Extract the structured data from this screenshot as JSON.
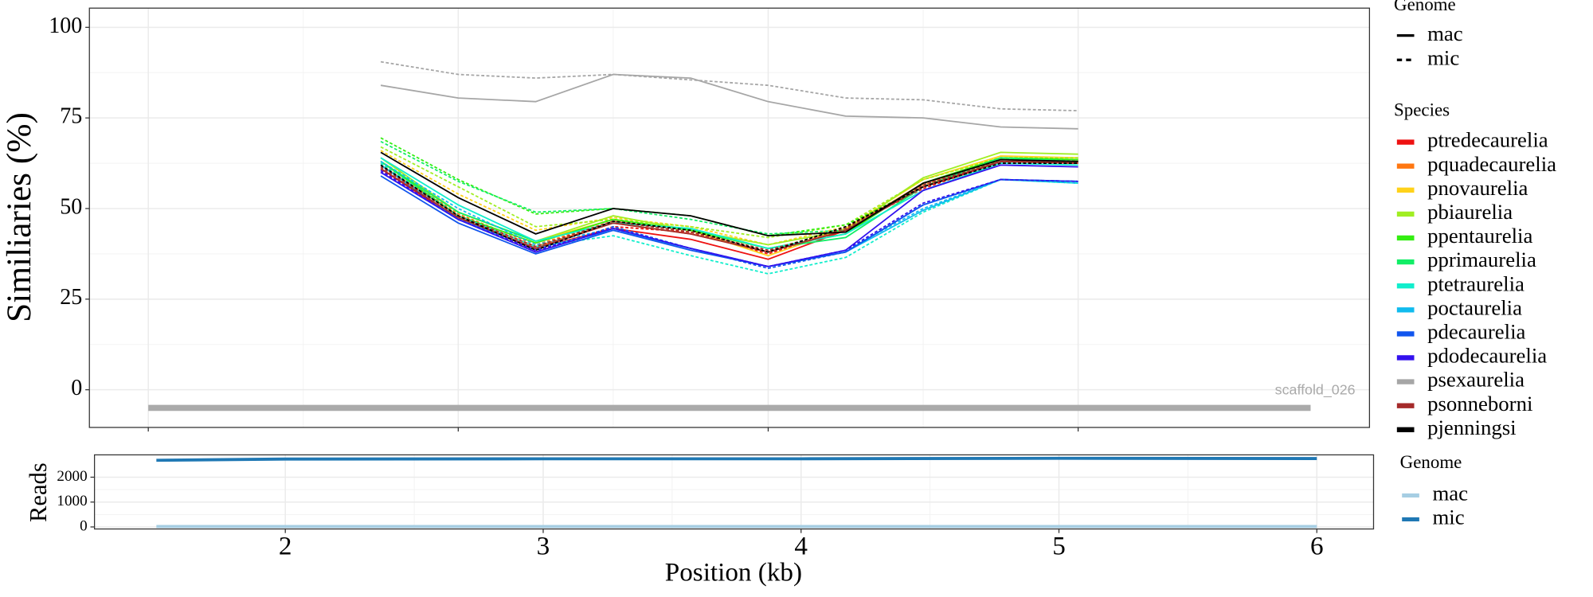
{
  "chart_data": [
    {
      "type": "line",
      "y_label": "Similiaries (%)",
      "x": [
        2.25,
        2.5,
        2.75,
        3.0,
        3.25,
        3.5,
        3.75,
        4.0,
        4.25,
        4.5
      ],
      "xlim": [
        1.31,
        5.44
      ],
      "xticks": [
        1.5,
        2.5,
        3.5,
        4.5
      ],
      "ylim": [
        -10.4,
        105.3
      ],
      "yticks": [
        0,
        25,
        50,
        75,
        100
      ],
      "grid": true,
      "genome_legend_title": "Genome",
      "species_legend_title": "Species",
      "genomes": [
        {
          "name": "mac",
          "linestyle": "solid"
        },
        {
          "name": "mic",
          "linestyle": "dashed"
        }
      ],
      "series": [
        {
          "name": "ptredecaurelia",
          "color": "#ee1111",
          "values": [
            [
              61,
              47,
              39,
              44.5,
              41.5,
              36,
              44,
              56,
              63,
              63
            ],
            [
              60.5,
              47.5,
              38,
              45,
              43.5,
              37.5,
              44.5,
              55.5,
              63,
              62.5
            ]
          ]
        },
        {
          "name": "pquadecaurelia",
          "color": "#ff7711",
          "values": [
            [
              62,
              48,
              39.5,
              46,
              43,
              38,
              44,
              57,
              63.5,
              63
            ],
            [
              62.5,
              48.5,
              40,
              46.5,
              43.5,
              38,
              44.5,
              56.5,
              63.5,
              63
            ]
          ]
        },
        {
          "name": "pnovaurelia",
          "color": "#ffd21a",
          "values": [
            [
              63,
              49,
              41,
              47,
              44,
              37,
              44.5,
              58,
              64.5,
              64
            ],
            [
              66,
              54,
              44,
              47.5,
              45,
              40,
              45,
              58,
              64,
              64
            ]
          ]
        },
        {
          "name": "pbiaurelia",
          "color": "#a0ee22",
          "values": [
            [
              64,
              49,
              41,
              48,
              44,
              40,
              44,
              58.5,
              65.5,
              65
            ],
            [
              67,
              56,
              45,
              47,
              45,
              42,
              45.5,
              58,
              64,
              64
            ]
          ]
        },
        {
          "name": "ppentaurelia",
          "color": "#33ee11",
          "values": [
            [
              63,
              48,
              40.5,
              47,
              44,
              39,
              43,
              57,
              64,
              63.5
            ],
            [
              69.5,
              58,
              48.5,
              50,
              48,
              42.5,
              45.5,
              56,
              63.5,
              63.5
            ]
          ]
        },
        {
          "name": "pprimaurelia",
          "color": "#11ee66",
          "values": [
            [
              63,
              49,
              41,
              46,
              44.5,
              39,
              42,
              56,
              64,
              63
            ],
            [
              68.5,
              57.5,
              49,
              50,
              47,
              43,
              44,
              56,
              63,
              63
            ]
          ]
        },
        {
          "name": "ptetraurelia",
          "color": "#11eecc",
          "values": [
            [
              64,
              51,
              41,
              46,
              44.5,
              39,
              43,
              55,
              62.5,
              62
            ],
            [
              62.5,
              48,
              39.5,
              42.5,
              37,
              32,
              36.5,
              49,
              58,
              57
            ]
          ]
        },
        {
          "name": "poctaurelia",
          "color": "#11bbee",
          "values": [
            [
              62,
              47,
              39,
              44,
              39,
              34,
              38,
              49.5,
              58,
              57.5
            ],
            [
              63,
              50,
              40,
              44.5,
              39,
              34,
              38.5,
              50,
              58,
              57
            ]
          ]
        },
        {
          "name": "pdecaurelia",
          "color": "#1155ee",
          "values": [
            [
              59,
              46,
              37.5,
              44,
              38.5,
              34,
              38,
              51,
              58,
              57.5
            ],
            [
              60,
              47,
              38,
              45,
              39,
              33.5,
              38,
              51,
              58,
              57.5
            ]
          ]
        },
        {
          "name": "pdodecaurelia",
          "color": "#3311ee",
          "values": [
            [
              60,
              47,
              38,
              44.5,
              39,
              34,
              38.5,
              55,
              62,
              61.5
            ],
            [
              60.5,
              47,
              38.5,
              44.5,
              39,
              34,
              38.5,
              51.5,
              58,
              57.5
            ]
          ]
        },
        {
          "name": "psexaurelia",
          "color": "#a6a6a6",
          "values": [
            [
              84,
              80.5,
              79.5,
              87,
              86,
              79.5,
              75.5,
              75,
              72.5,
              72
            ],
            [
              90.5,
              87,
              86,
              87,
              85.5,
              84,
              80.5,
              80,
              77.5,
              77
            ]
          ]
        },
        {
          "name": "psonneborni",
          "color": "#a52a2a",
          "values": [
            [
              61,
              47.5,
              39,
              46,
              43,
              38,
              44,
              56,
              63,
              63
            ],
            [
              61.5,
              48,
              39.5,
              46.5,
              43.5,
              38.5,
              44.5,
              56.5,
              63,
              62.5
            ]
          ]
        },
        {
          "name": "pjenningsi",
          "color": "#000000",
          "values": [
            [
              65.5,
              53,
              43,
              50,
              48,
              42.5,
              43.5,
              57,
              63.5,
              63
            ],
            [
              62,
              48,
              38.5,
              46.5,
              44,
              38,
              45,
              56,
              62.5,
              62.5
            ]
          ]
        }
      ],
      "annotation": {
        "text": "scaffold_026",
        "start": 1.5,
        "end": 5.25,
        "y": -5,
        "color": "#aaaaaa"
      }
    },
    {
      "type": "line",
      "x_label": "Position (kb)",
      "y_label": "Reads",
      "x": [
        1.5,
        2,
        3,
        4,
        5,
        6
      ],
      "xlim": [
        1.26,
        6.22
      ],
      "xticks": [
        2,
        3,
        4,
        5,
        6
      ],
      "ylim": [
        -82,
        2898
      ],
      "yticks": [
        0,
        1000,
        2000
      ],
      "grid": true,
      "legend_title": "Genome",
      "series": [
        {
          "name": "mac",
          "color": "#a6cee3",
          "values": [
            20,
            20,
            20,
            20,
            20,
            20
          ]
        },
        {
          "name": "mic",
          "color": "#1f78b4",
          "values": [
            2680,
            2730,
            2740,
            2740,
            2760,
            2750
          ]
        }
      ]
    }
  ]
}
